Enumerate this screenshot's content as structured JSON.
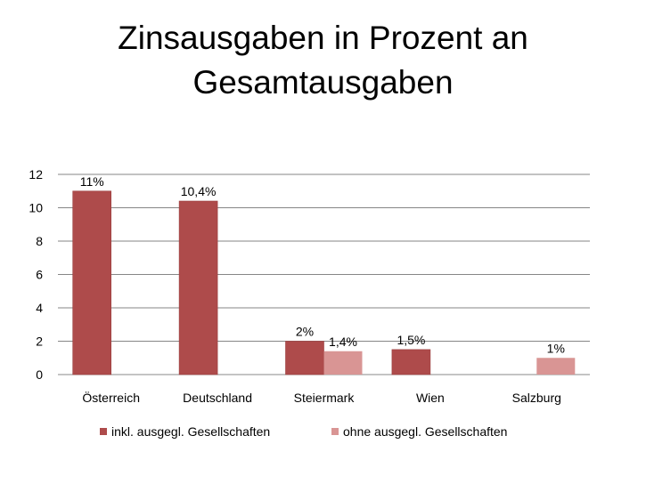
{
  "chart_data": {
    "type": "bar",
    "title_lines": [
      "Zinsausgaben in Prozent an",
      "Gesamtausgaben"
    ],
    "categories": [
      "Österreich",
      "Deutschland",
      "Steiermark",
      "Wien",
      "Salzburg"
    ],
    "series": [
      {
        "name": "inkl. ausgegl. Gesellschaften",
        "color": "#AE4B4B",
        "values": [
          11,
          10.4,
          2,
          1.5,
          null
        ],
        "labels": [
          "11%",
          "10,4%",
          "2%",
          "1,5%",
          null
        ]
      },
      {
        "name": "ohne ausgegl. Gesellschaften",
        "color": "#D99594",
        "values": [
          null,
          null,
          1.4,
          null,
          1
        ],
        "labels": [
          null,
          null,
          "1,4%",
          null,
          "1%"
        ]
      }
    ],
    "yticks": [
      0,
      2,
      4,
      6,
      8,
      10,
      12
    ],
    "ylim": [
      0,
      12
    ],
    "grid": true,
    "legend": "bottom"
  }
}
